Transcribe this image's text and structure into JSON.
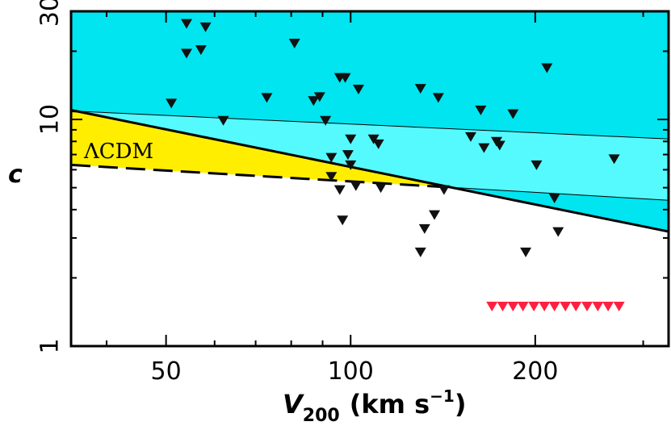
{
  "chart_data": {
    "type": "scatter",
    "title": "",
    "xlabel": {
      "main": "V",
      "sub": "200",
      "units": "(km s",
      "exp": "−1",
      "close": ")"
    },
    "ylabel": "c",
    "xscale": "log",
    "yscale": "log",
    "xlim": [
      35,
      330
    ],
    "ylim": [
      1,
      30
    ],
    "xticks": [
      {
        "value": 50,
        "label": "50"
      },
      {
        "value": 100,
        "label": "100"
      },
      {
        "value": 200,
        "label": "200"
      }
    ],
    "yticks": [
      {
        "value": 1,
        "label": "1"
      },
      {
        "value": 10,
        "label": "10"
      },
      {
        "value": 30,
        "label": "30"
      }
    ],
    "annotation": {
      "text": "ΛCDM",
      "color": "#ffee00"
    },
    "colors": {
      "upper_region": "#00e5ef",
      "band": "#55faff",
      "lcdm": "#ffee00",
      "markers": "#111111",
      "red_markers": "#ff2040"
    },
    "regions": {
      "solid_line": [
        [
          35,
          11.0
        ],
        [
          330,
          3.2
        ]
      ],
      "dashed_upper": [
        [
          35,
          10.9
        ],
        [
          330,
          8.2
        ]
      ],
      "dashed_lower": [
        [
          35,
          6.3
        ],
        [
          330,
          4.4
        ]
      ]
    },
    "series": [
      {
        "marker": "triangle-down",
        "points": [
          [
            51,
            11.8
          ],
          [
            54,
            26.5
          ],
          [
            54,
            19.6
          ],
          [
            57,
            20.3
          ],
          [
            58,
            25.6
          ],
          [
            62,
            9.9
          ],
          [
            73,
            12.5
          ],
          [
            81,
            21.7
          ],
          [
            87,
            12.1
          ],
          [
            89,
            12.6
          ],
          [
            91,
            9.9
          ],
          [
            93,
            6.8
          ],
          [
            93,
            5.6
          ],
          [
            96,
            15.3
          ],
          [
            98,
            15.3
          ],
          [
            96,
            4.9
          ],
          [
            97,
            3.6
          ],
          [
            99,
            7.0
          ],
          [
            100,
            8.2
          ],
          [
            100,
            6.3
          ],
          [
            102,
            5.1
          ],
          [
            103,
            13.6
          ],
          [
            109,
            8.2
          ],
          [
            111,
            7.8
          ],
          [
            112,
            5.0
          ],
          [
            130,
            13.7
          ],
          [
            130,
            2.6
          ],
          [
            132,
            3.3
          ],
          [
            137,
            3.8
          ],
          [
            139,
            12.5
          ],
          [
            142,
            4.9
          ],
          [
            157,
            8.4
          ],
          [
            163,
            11.0
          ],
          [
            165,
            7.5
          ],
          [
            173,
            8.0
          ],
          [
            175,
            7.7
          ],
          [
            184,
            10.6
          ],
          [
            193,
            2.6
          ],
          [
            201,
            6.3
          ],
          [
            209,
            16.9
          ],
          [
            215,
            4.5
          ],
          [
            218,
            3.2
          ],
          [
            269,
            6.7
          ]
        ]
      },
      {
        "marker": "triangle-down",
        "color": "red",
        "points": [
          [
            170,
            1.5
          ],
          [
            177,
            1.5
          ],
          [
            184,
            1.5
          ],
          [
            191,
            1.5
          ],
          [
            199,
            1.5
          ],
          [
            207,
            1.5
          ],
          [
            215,
            1.5
          ],
          [
            224,
            1.5
          ],
          [
            233,
            1.5
          ],
          [
            243,
            1.5
          ],
          [
            253,
            1.5
          ],
          [
            263,
            1.5
          ],
          [
            274,
            1.5
          ]
        ]
      }
    ]
  }
}
